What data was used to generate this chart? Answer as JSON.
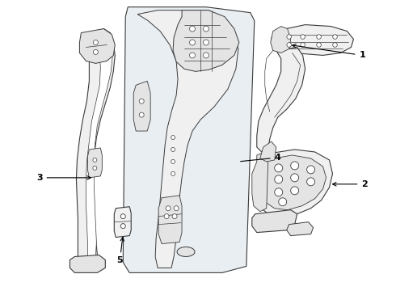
{
  "background_color": "#ffffff",
  "line_color": "#3a3a3a",
  "label_color": "#000000",
  "fig_width": 4.9,
  "fig_height": 3.6,
  "dpi": 100,
  "panel_fill": "#e8eef2",
  "part_fill": "#f0f0f0",
  "part_fill_dark": "#d8d8d8",
  "part_fill_mid": "#e4e4e4"
}
